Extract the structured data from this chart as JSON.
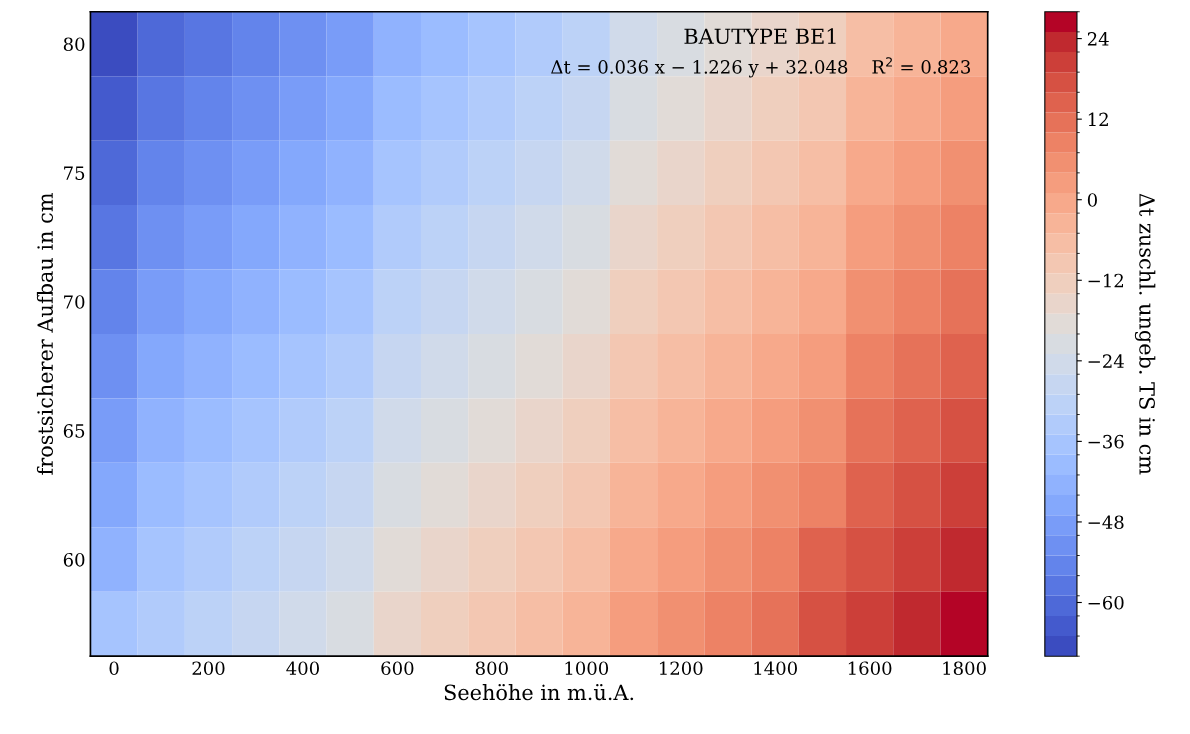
{
  "chart_data": {
    "type": "heatmap",
    "title": "BAUTYPE BE1",
    "annotations": [
      "Δt = 0.036 x − 1.226 y + 32.048    R$^{2}$ = 0.823"
    ],
    "xlabel": "Seehöhe in m.ü.A.",
    "ylabel": "frostsicherer Aufbau in cm",
    "clabel": "Δt zuschl. ungeb. TS in cm",
    "categories": [
      "0",
      null,
      "200",
      null,
      "400",
      null,
      "600",
      null,
      "800",
      null,
      "1000",
      null,
      "1200",
      null,
      "1400",
      null,
      "1600",
      null,
      "1800"
    ],
    "y_categories": [
      "80",
      null,
      "75",
      null,
      "70",
      null,
      "65",
      null,
      "60",
      null
    ],
    "cells": [
      [
        -66,
        -62,
        -59,
        -55,
        -52,
        -48,
        -44,
        -41,
        -37,
        -34,
        -30,
        -26,
        -23,
        -19,
        -16,
        -12,
        -8,
        -5,
        -1
      ],
      [
        -63,
        -59,
        -56,
        -52,
        -49,
        -45,
        -41,
        -38,
        -34,
        -31,
        -27,
        -23,
        -20,
        -16,
        -13,
        -9,
        -5,
        -2,
        2
      ],
      [
        -60,
        -56,
        -53,
        -49,
        -45,
        -42,
        -38,
        -35,
        -31,
        -27,
        -24,
        -20,
        -17,
        -13,
        -9,
        -6,
        -2,
        1,
        5
      ],
      [
        -57,
        -53,
        -50,
        -46,
        -42,
        -39,
        -35,
        -32,
        -28,
        -24,
        -21,
        -17,
        -14,
        -10,
        -6,
        -3,
        1,
        4,
        8
      ],
      [
        -54,
        -50,
        -47,
        -43,
        -39,
        -36,
        -32,
        -29,
        -25,
        -21,
        -18,
        -14,
        -11,
        -7,
        -3,
        0,
        4,
        7,
        11
      ],
      [
        -51,
        -47,
        -44,
        -40,
        -36,
        -33,
        -29,
        -26,
        -22,
        -18,
        -15,
        -11,
        -8,
        -4,
        0,
        3,
        7,
        11,
        14
      ],
      [
        -48,
        -44,
        -40,
        -37,
        -33,
        -30,
        -26,
        -22,
        -19,
        -15,
        -12,
        -8,
        -4,
        -1,
        3,
        6,
        10,
        14,
        17
      ],
      [
        -45,
        -41,
        -37,
        -34,
        -30,
        -27,
        -23,
        -19,
        -16,
        -12,
        -9,
        -5,
        -1,
        2,
        6,
        9,
        13,
        17,
        20
      ],
      [
        -42,
        -38,
        -34,
        -31,
        -27,
        -24,
        -20,
        -16,
        -13,
        -9,
        -6,
        -2,
        2,
        5,
        9,
        13,
        16,
        20,
        23
      ],
      [
        -38,
        -35,
        -31,
        -28,
        -24,
        -21,
        -17,
        -13,
        -10,
        -6,
        -3,
        1,
        5,
        8,
        12,
        16,
        19,
        23,
        26
      ]
    ],
    "clim": [
      -68,
      28
    ],
    "cticks": [
      -60,
      -48,
      -36,
      -24,
      -12,
      0,
      12,
      24
    ]
  }
}
